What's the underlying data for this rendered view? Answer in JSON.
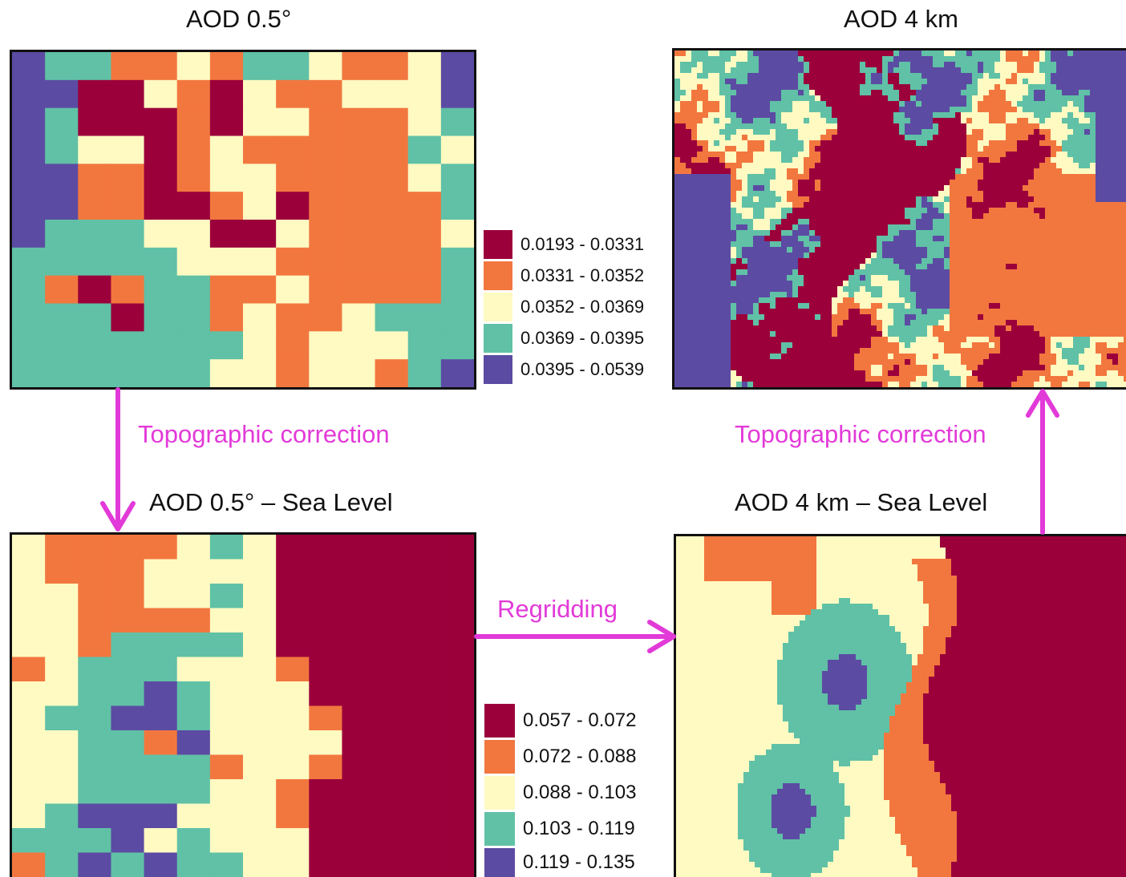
{
  "colors": {
    "c1": "#9b003b",
    "c2": "#f2773f",
    "c3": "#fefac2",
    "c4": "#60c1a6",
    "c5": "#5c4ba3",
    "arrow": "#e23ad8"
  },
  "panels": {
    "top_left": {
      "title": "AOD 0.5°"
    },
    "top_right": {
      "title": "AOD 4 km"
    },
    "bottom_left": {
      "title": "AOD 0.5° – Sea Level"
    },
    "bottom_right": {
      "title": "AOD 4 km – Sea Level"
    }
  },
  "steps": {
    "topo_left": "Topographic correction",
    "topo_right": "Topographic correction",
    "regrid": "Regridding"
  },
  "legend_top": [
    {
      "label": "0.0193 - 0.0331",
      "color": "#9b003b"
    },
    {
      "label": "0.0331 - 0.0352",
      "color": "#f2773f"
    },
    {
      "label": "0.0352 - 0.0369",
      "color": "#fefac2"
    },
    {
      "label": "0.0369 - 0.0395",
      "color": "#60c1a6"
    },
    {
      "label": "0.0395 - 0.0539",
      "color": "#5c4ba3"
    }
  ],
  "legend_bottom": [
    {
      "label": "0.057 - 0.072",
      "color": "#9b003b"
    },
    {
      "label": "0.072 - 0.088",
      "color": "#f2773f"
    },
    {
      "label": "0.088 - 0.103",
      "color": "#fefac2"
    },
    {
      "label": "0.103 - 0.119",
      "color": "#60c1a6"
    },
    {
      "label": "0.119 - 0.135",
      "color": "#5c4ba3"
    }
  ]
}
